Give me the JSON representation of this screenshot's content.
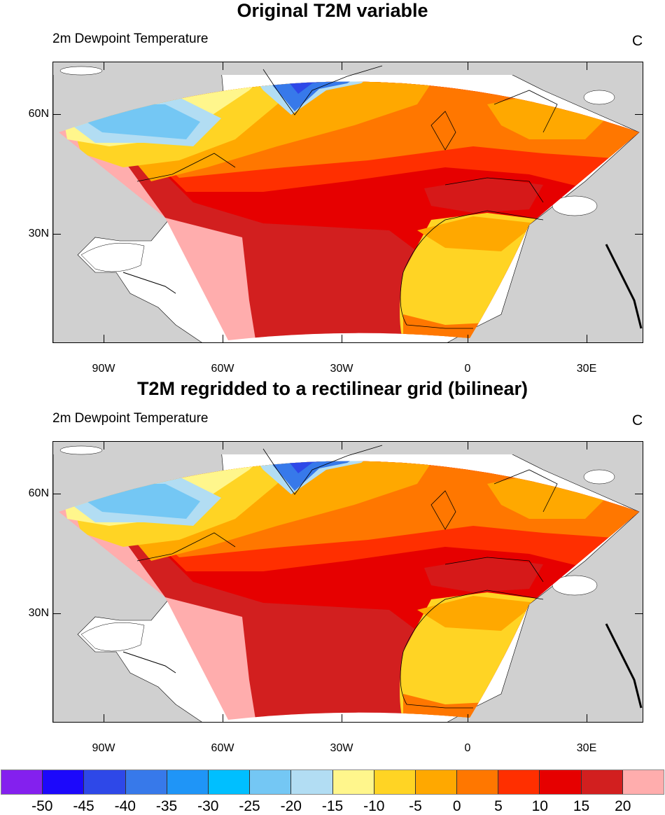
{
  "panels": [
    {
      "title": "Original T2M variable",
      "subtitle": "2m Dewpoint Temperature",
      "units": "C"
    },
    {
      "title": "T2M regridded to a rectilinear grid (bilinear)",
      "subtitle": "2m Dewpoint Temperature",
      "units": "C"
    }
  ],
  "lon_ticks": [
    "90W",
    "60W",
    "30W",
    "0",
    "30E"
  ],
  "lat_ticks": [
    "60N",
    "30N"
  ],
  "colorbar": {
    "labels": [
      "-50",
      "-45",
      "-40",
      "-35",
      "-30",
      "-25",
      "-20",
      "-15",
      "-10",
      "-5",
      "0",
      "5",
      "10",
      "15",
      "20"
    ],
    "colors": [
      "#8420ee",
      "#1c08fb",
      "#2e48e8",
      "#3779ea",
      "#1f95f7",
      "#00bfff",
      "#74c7f4",
      "#b2ddf3",
      "#fff68c",
      "#ffd424",
      "#ffa800",
      "#ff7700",
      "#ff2f00",
      "#e60000",
      "#d21f1f",
      "#ffadad"
    ]
  }
}
